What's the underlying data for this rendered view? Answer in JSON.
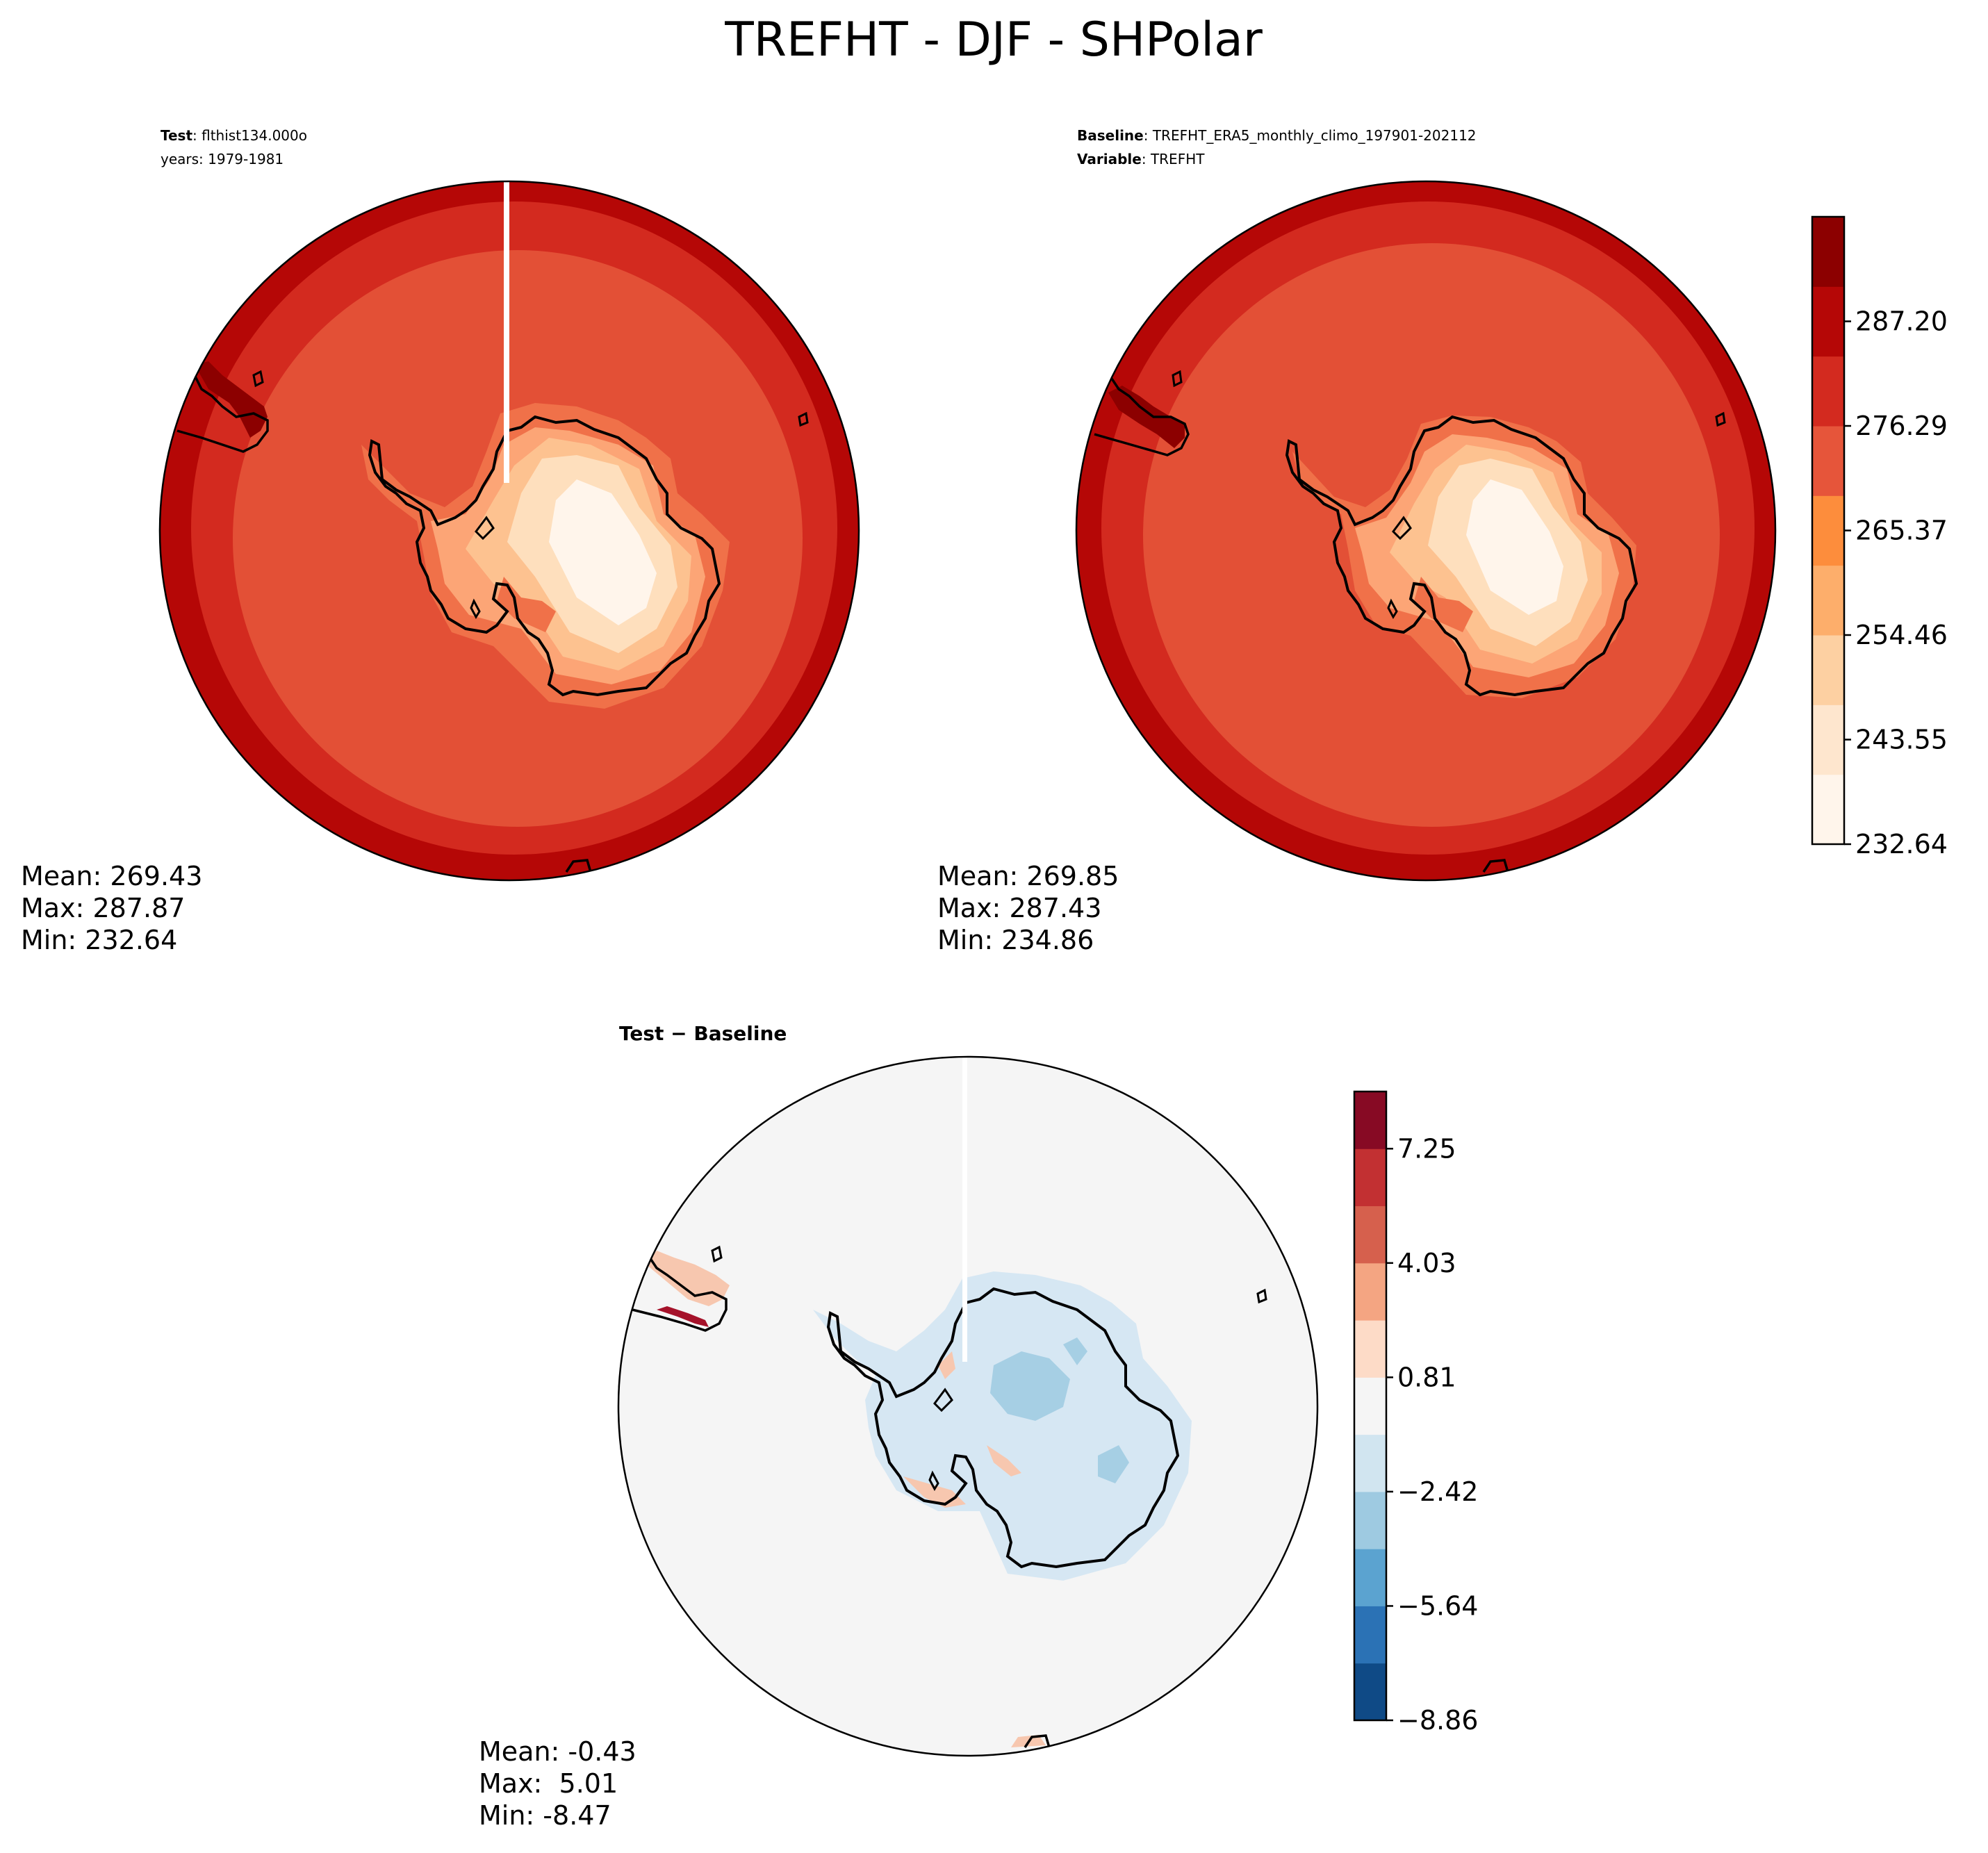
{
  "figure": {
    "title": "TREFHT - DJF - SHPolar"
  },
  "panels": {
    "test": {
      "label_key": "Test",
      "label_value": ": flthist134.000o",
      "subtitle": "years: 1979-1981",
      "stats": {
        "mean": "Mean: 269.43",
        "max": "Max: 287.87",
        "min": "Min: 232.64"
      }
    },
    "baseline": {
      "label_key": "Baseline",
      "label_value": ": TREFHT_ERA5_monthly_climo_197901-202112",
      "var_key": "Variable",
      "var_value": ": TREFHT",
      "stats": {
        "mean": "Mean: 269.85",
        "max": "Max: 287.43",
        "min": "Min: 234.86"
      }
    },
    "diff": {
      "title": "Test − Baseline",
      "stats": {
        "mean": "Mean: -0.43",
        "max": "Max:  5.01",
        "min": "Min: -8.47"
      }
    }
  },
  "colorbars": {
    "temperature": {
      "tick_labels": [
        "232.64",
        "243.55",
        "254.46",
        "265.37",
        "276.29",
        "287.20"
      ],
      "colors": [
        "#fff5eb",
        "#fee6ce",
        "#fdd0a2",
        "#fdae6b",
        "#fd8d3c",
        "#e6553a",
        "#d32a1f",
        "#b50706",
        "#8c0000"
      ]
    },
    "difference": {
      "tick_labels": [
        "−8.86",
        "−5.64",
        "−2.42",
        "0.81",
        "4.03",
        "7.25"
      ],
      "colors": [
        "#0f4a86",
        "#2b72b5",
        "#5ba3d0",
        "#9ecae1",
        "#d1e5f0",
        "#f5f5f5",
        "#fddbc7",
        "#f4a582",
        "#d6604d",
        "#c23032",
        "#870a24"
      ]
    }
  },
  "map_colors": {
    "test": {
      "outer": "#b50706",
      "ring2": "#d32a1f",
      "ring3": "#e35036",
      "coastal": "#f07149",
      "c1": "#fca576",
      "c2": "#fdc290",
      "c3": "#fedfbd",
      "c4": "#fff5eb"
    },
    "baseline": {
      "outer": "#b50706",
      "ring2": "#d32a1f",
      "ring3": "#e35036",
      "coastal": "#f07149",
      "c1": "#fca576",
      "c2": "#fdc290",
      "c3": "#fedfbd",
      "c4": "#fff5eb"
    },
    "diff": {
      "background": "#f5f5f5",
      "light_blue": "#d6e7f3",
      "mid_blue": "#a6cfe4",
      "light_red": "#f7c7af",
      "dark_red": "#a5122a"
    },
    "coastline": "#000000"
  }
}
